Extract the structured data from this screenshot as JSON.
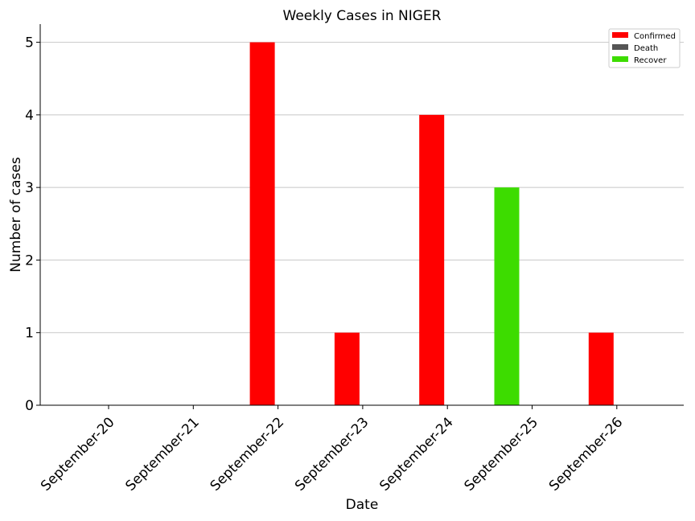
{
  "chart_data": {
    "type": "bar",
    "title": "Weekly Cases in NIGER",
    "xlabel": "Date",
    "ylabel": "Number of cases",
    "categories": [
      "September-20",
      "September-21",
      "September-22",
      "September-23",
      "September-24",
      "September-25",
      "September-26"
    ],
    "series": [
      {
        "name": "Confirmed",
        "color": "#ff0000",
        "values": [
          0,
          0,
          5,
          1,
          4,
          0,
          1
        ]
      },
      {
        "name": "Death",
        "color": "#555555",
        "values": [
          0,
          0,
          0,
          0,
          0,
          0,
          0
        ]
      },
      {
        "name": "Recover",
        "color": "#3ddc00",
        "values": [
          0,
          0,
          0,
          0,
          0,
          3,
          0
        ]
      }
    ],
    "yticks": [
      0,
      1,
      2,
      3,
      4,
      5
    ],
    "ylim": [
      0,
      5.25
    ],
    "grid": "horizontal",
    "legend": "top-right"
  }
}
